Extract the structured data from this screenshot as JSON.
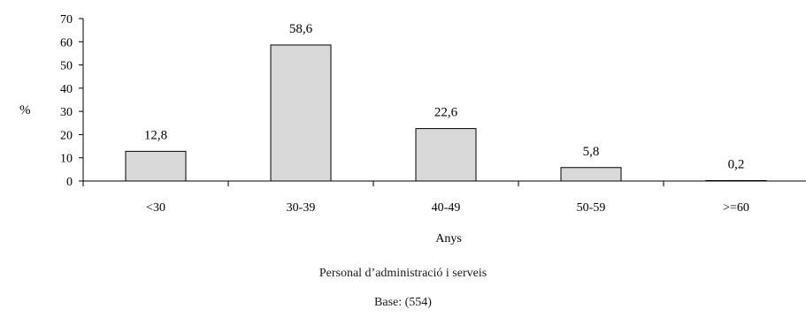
{
  "chart_data": {
    "type": "bar",
    "categories": [
      "<30",
      "30-39",
      "40-49",
      "50-59",
      ">=60"
    ],
    "values": [
      12.8,
      58.6,
      22.6,
      5.8,
      0.2
    ],
    "value_labels": [
      "12,8",
      "58,6",
      "22,6",
      "5,8",
      "0,2"
    ],
    "ylabel": "%",
    "xlabel": "Anys",
    "ylim": [
      0,
      70
    ],
    "yticks": [
      0,
      10,
      20,
      30,
      40,
      50,
      60,
      70
    ],
    "grid": false,
    "bar_color": "#d9d9d9",
    "bar_edge_color": "#000000"
  },
  "captions": {
    "subtitle": "Personal d’administració i serveis",
    "base": "Base: (554)"
  }
}
